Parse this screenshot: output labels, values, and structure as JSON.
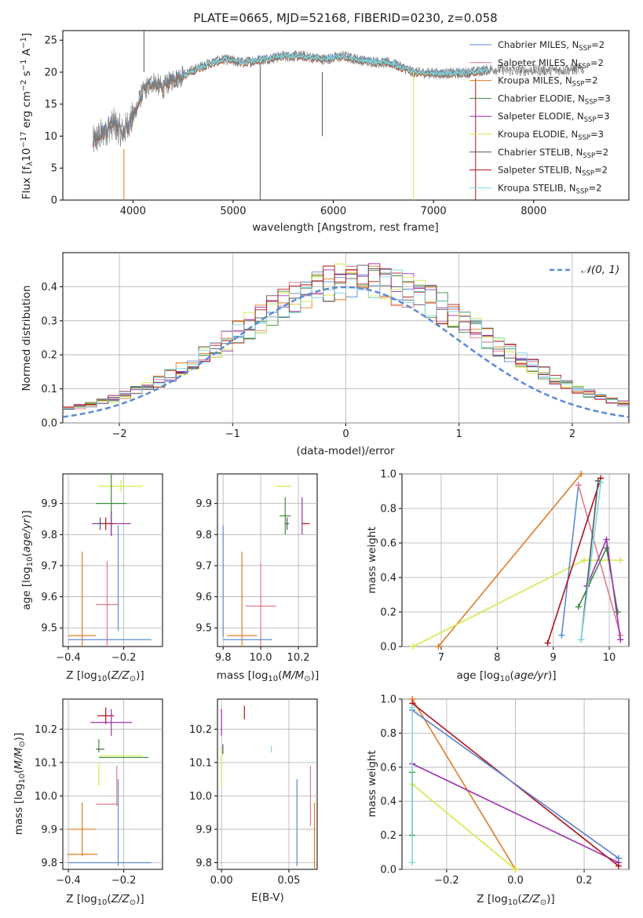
{
  "title": "PLATE=0665, MJD=52168, FIBERID=0230, z=0.058",
  "colors": {
    "Chabrier MILES": "#5b8ad6",
    "Salpeter MILES": "#e07b8c",
    "Kroupa MILES": "#e07b22",
    "Chabrier ELODIE": "#3d8c3d",
    "Salpeter ELODIE": "#9b2fae",
    "Kroupa ELODIE": "#d6e84a",
    "Chabrier STELIB": "#555555",
    "Salpeter STELIB": "#b0121c",
    "Kroupa STELIB": "#7dd8e0"
  },
  "legend": {
    "normal_label": "𝒩(0, 1)",
    "entries": [
      {
        "name": "Chabrier MILES",
        "nssp": "2"
      },
      {
        "name": "Salpeter MILES",
        "nssp": "2"
      },
      {
        "name": "Kroupa MILES",
        "nssp": "2"
      },
      {
        "name": "Chabrier ELODIE",
        "nssp": "3"
      },
      {
        "name": "Salpeter ELODIE",
        "nssp": "3"
      },
      {
        "name": "Kroupa ELODIE",
        "nssp": "3"
      },
      {
        "name": "Chabrier STELIB",
        "nssp": "2"
      },
      {
        "name": "Salpeter STELIB",
        "nssp": "2"
      },
      {
        "name": "Kroupa STELIB",
        "nssp": "2"
      }
    ]
  },
  "chart_data": [
    {
      "id": "spectrum",
      "type": "line",
      "xlabel": "wavelength [Angstrom, rest frame]",
      "ylabel": "Flux [f_λ 10^-17 erg cm^-2 s^-1 A^-1]",
      "xlim": [
        3300,
        8950
      ],
      "ylim": [
        0,
        26.5
      ],
      "xticks": [
        4000,
        5000,
        6000,
        7000,
        8000
      ],
      "yticks": [
        0,
        5,
        10,
        15,
        20,
        25
      ],
      "grid": false,
      "legend_position": "right",
      "continuum": [
        [
          3600,
          9
        ],
        [
          3700,
          10.5
        ],
        [
          3800,
          12
        ],
        [
          3900,
          10.5
        ],
        [
          4000,
          13
        ],
        [
          4100,
          17
        ],
        [
          4200,
          18.5
        ],
        [
          4300,
          17.5
        ],
        [
          4400,
          19
        ],
        [
          4500,
          19.5
        ],
        [
          4700,
          21
        ],
        [
          4900,
          22
        ],
        [
          5100,
          21.5
        ],
        [
          5300,
          22
        ],
        [
          5500,
          22.5
        ],
        [
          5700,
          22.5
        ],
        [
          5900,
          22
        ],
        [
          6100,
          22.5
        ],
        [
          6300,
          21.8
        ],
        [
          6500,
          21.5
        ],
        [
          6600,
          21.3
        ],
        [
          6800,
          20
        ],
        [
          7000,
          19.8
        ],
        [
          7200,
          19.8
        ],
        [
          7400,
          20
        ],
        [
          7600,
          20.5
        ],
        [
          7800,
          20.2
        ],
        [
          8000,
          20.3
        ],
        [
          8200,
          20.3
        ],
        [
          8400,
          20.4
        ],
        [
          8500,
          20.5
        ]
      ],
      "model_end": 7550,
      "spikes": [
        {
          "x": 3910,
          "y0": 0,
          "y1": 8,
          "series": "Kroupa MILES"
        },
        {
          "x": 4110,
          "y0": 26.5,
          "y1": 20,
          "series": "Chabrier STELIB"
        },
        {
          "x": 5270,
          "y0": 0,
          "y1": 21,
          "series": "Chabrier STELIB"
        },
        {
          "x": 5890,
          "y0": 10,
          "y1": 20,
          "series": "Chabrier STELIB"
        },
        {
          "x": 6800,
          "y0": 0,
          "y1": 20,
          "series": "Kroupa ELODIE"
        },
        {
          "x": 7420,
          "y0": 0,
          "y1": 19,
          "series": "Salpeter STELIB"
        }
      ]
    },
    {
      "id": "residuals",
      "type": "histogram",
      "xlabel": "(data-model)/error",
      "ylabel": "Normed distribution",
      "xlim": [
        -2.5,
        2.5
      ],
      "ylim": [
        0,
        0.5
      ],
      "xticks": [
        -2,
        -1,
        0,
        1,
        2
      ],
      "yticks": [
        0.0,
        0.1,
        0.2,
        0.3,
        0.4
      ],
      "grid": true,
      "legend_position": "top-right",
      "bin_width": 0.1,
      "normal": {
        "mean": 0,
        "sd": 1
      }
    },
    {
      "id": "age-Z",
      "type": "errorbar",
      "xlabel": "Z [log10(Z/Z⊙)]",
      "ylabel": "age [log10(age/yr)]",
      "xlim": [
        -0.42,
        -0.06
      ],
      "ylim": [
        9.44,
        9.995
      ],
      "xticks": [
        -0.4,
        -0.2
      ],
      "yticks": [
        9.5,
        9.6,
        9.7,
        9.8,
        9.9
      ],
      "grid": true,
      "points": [
        {
          "series": "Kroupa ELODIE",
          "x": -0.21,
          "xerr": 0.08,
          "y": 9.955,
          "yerr": 0.02
        },
        {
          "series": "Chabrier ELODIE",
          "x": -0.245,
          "xerr": 0.055,
          "y": 9.9,
          "yerr": 0.1
        },
        {
          "series": "Salpeter ELODIE",
          "x": -0.245,
          "xerr": 0.07,
          "y": 9.835,
          "yerr": 0.04
        },
        {
          "series": "Salpeter STELIB",
          "x": -0.265,
          "xerr": 0.03,
          "y": 9.835,
          "yerr": 0.02
        },
        {
          "series": "Chabrier STELIB",
          "x": -0.285,
          "xerr": 0.01,
          "y": 9.835,
          "yerr": 0.02
        },
        {
          "series": "Chabrier MILES",
          "x": -0.22,
          "xerr": 0.0,
          "y": 9.66,
          "yerr": 0.17
        },
        {
          "series": "Salpeter MILES",
          "x": -0.26,
          "xerr": 0.04,
          "y": 9.575,
          "yerr": 0.14
        },
        {
          "series": "Kroupa MILES",
          "x": -0.35,
          "xerr": 0.05,
          "y": 9.475,
          "yerr": 0.27
        },
        {
          "series": "Chabrier MILES",
          "x": -0.25,
          "xerr": 0.15,
          "y": 9.462,
          "yerr": 0.0
        }
      ]
    },
    {
      "id": "age-mass",
      "type": "errorbar",
      "xlabel": "mass [log10(M/M⊙)]",
      "ylabel": "",
      "xlim": [
        9.77,
        10.3
      ],
      "ylim": [
        9.44,
        9.995
      ],
      "xticks": [
        9.8,
        10.0,
        10.2
      ],
      "yticks": [
        9.5,
        9.6,
        9.7,
        9.8,
        9.9
      ],
      "grid": true,
      "points": [
        {
          "series": "Kroupa ELODIE",
          "x": 10.12,
          "xerr": 0.04,
          "y": 9.955,
          "yerr": 0.0
        },
        {
          "series": "Chabrier ELODIE",
          "x": 10.13,
          "xerr": 0.03,
          "y": 9.86,
          "yerr": 0.06
        },
        {
          "series": "Salpeter ELODIE",
          "x": 10.22,
          "xerr": 0.0,
          "y": 9.86,
          "yerr": 0.06
        },
        {
          "series": "Salpeter STELIB",
          "x": 10.24,
          "xerr": 0.02,
          "y": 9.835,
          "yerr": 0.0
        },
        {
          "series": "Chabrier STELIB",
          "x": 10.14,
          "xerr": 0.01,
          "y": 9.835,
          "yerr": 0.02
        },
        {
          "series": "Chabrier MILES",
          "x": 9.8,
          "xerr": 0.0,
          "y": 9.65,
          "yerr": 0.18
        },
        {
          "series": "Salpeter MILES",
          "x": 10.0,
          "xerr": 0.08,
          "y": 9.57,
          "yerr": 0.14
        },
        {
          "series": "Kroupa MILES",
          "x": 9.9,
          "xerr": 0.08,
          "y": 9.475,
          "yerr": 0.27
        },
        {
          "series": "Chabrier MILES",
          "x": 9.93,
          "xerr": 0.13,
          "y": 9.462,
          "yerr": 0.0
        }
      ]
    },
    {
      "id": "weight-age",
      "type": "line",
      "xlabel": "age [log10(age/yr)]",
      "ylabel": "mass weight",
      "xlim": [
        6.3,
        10.35
      ],
      "ylim": [
        0,
        1
      ],
      "xticks": [
        7,
        8,
        9,
        10
      ],
      "yticks": [
        0.0,
        0.2,
        0.4,
        0.6,
        0.8,
        1.0
      ],
      "grid": true,
      "series": [
        {
          "name": "Kroupa MILES",
          "points": [
            [
              6.95,
              0.0
            ],
            [
              9.5,
              1.0
            ]
          ]
        },
        {
          "name": "Kroupa ELODIE",
          "points": [
            [
              6.5,
              0.0
            ],
            [
              9.55,
              0.5
            ],
            [
              10.2,
              0.5
            ]
          ]
        },
        {
          "name": "Chabrier MILES",
          "points": [
            [
              9.15,
              0.065
            ],
            [
              9.45,
              0.935
            ]
          ]
        },
        {
          "name": "Salpeter MILES",
          "points": [
            [
              9.45,
              0.935
            ],
            [
              10.2,
              0.065
            ]
          ]
        },
        {
          "name": "Salpeter STELIB",
          "points": [
            [
              8.9,
              0.02
            ],
            [
              9.85,
              0.975
            ]
          ]
        },
        {
          "name": "Chabrier ELODIE",
          "points": [
            [
              9.45,
              0.23
            ],
            [
              9.95,
              0.57
            ],
            [
              10.15,
              0.2
            ]
          ]
        },
        {
          "name": "Salpeter ELODIE",
          "points": [
            [
              9.6,
              0.35
            ],
            [
              9.95,
              0.62
            ],
            [
              10.2,
              0.04
            ]
          ]
        },
        {
          "name": "Chabrier STELIB",
          "points": [
            [
              9.5,
              0.04
            ],
            [
              9.8,
              0.96
            ]
          ]
        },
        {
          "name": "Kroupa STELIB",
          "points": [
            [
              9.5,
              0.04
            ],
            [
              9.85,
              0.95
            ]
          ]
        }
      ]
    },
    {
      "id": "mass-Z",
      "type": "errorbar",
      "xlabel": "Z [log10(Z/Z⊙)]",
      "ylabel": "mass [log10(M/M⊙)]",
      "xlim": [
        -0.42,
        -0.06
      ],
      "ylim": [
        9.78,
        10.29
      ],
      "xticks": [
        -0.4,
        -0.2
      ],
      "yticks": [
        9.8,
        9.9,
        10.0,
        10.1,
        10.2
      ],
      "grid": true,
      "points": [
        {
          "series": "Salpeter STELIB",
          "x": -0.265,
          "xerr": 0.03,
          "y": 10.24,
          "yerr": 0.025
        },
        {
          "series": "Salpeter ELODIE",
          "x": -0.245,
          "xerr": 0.075,
          "y": 10.22,
          "yerr": 0.04
        },
        {
          "series": "Chabrier ELODIE",
          "x": -0.29,
          "xerr": 0.0,
          "y": 10.15,
          "yerr": 0.02
        },
        {
          "series": "Chabrier STELIB",
          "x": -0.285,
          "xerr": 0.015,
          "y": 10.14,
          "yerr": 0.0
        },
        {
          "series": "Kroupa ELODIE",
          "x": -0.21,
          "xerr": 0.08,
          "y": 10.12,
          "yerr": 0.0
        },
        {
          "series": "Chabrier ELODIE",
          "x": -0.2,
          "xerr": 0.09,
          "y": 10.115,
          "yerr": 0.0
        },
        {
          "series": "Kroupa ELODIE",
          "x": -0.29,
          "xerr": 0.0,
          "y": 10.065,
          "yerr": 0.035
        },
        {
          "series": "Salpeter MILES",
          "x": -0.225,
          "xerr": 0.0,
          "y": 10.03,
          "yerr": 0.06
        },
        {
          "series": "Salpeter MILES",
          "x": -0.26,
          "xerr": 0.04,
          "y": 9.975,
          "yerr": 0.0
        },
        {
          "series": "Chabrier MILES",
          "x": -0.22,
          "xerr": 0.0,
          "y": 9.92,
          "yerr": 0.13
        },
        {
          "series": "Kroupa MILES",
          "x": -0.35,
          "xerr": 0.05,
          "y": 9.9,
          "yerr": 0.08
        },
        {
          "series": "Kroupa MILES",
          "x": -0.35,
          "xerr": 0.055,
          "y": 9.825,
          "yerr": 0.0
        },
        {
          "series": "Chabrier MILES",
          "x": -0.25,
          "xerr": 0.15,
          "y": 9.8,
          "yerr": 0.0
        }
      ]
    },
    {
      "id": "mass-EBV",
      "type": "errorbar",
      "xlabel": "E(B-V)",
      "ylabel": "",
      "xlim": [
        -0.003,
        0.071
      ],
      "ylim": [
        9.78,
        10.29
      ],
      "xticks": [
        0.0,
        0.05
      ],
      "yticks": [
        9.8,
        9.9,
        10.0,
        10.1,
        10.2
      ],
      "grid": true,
      "points": [
        {
          "series": "Salpeter ELODIE",
          "x": 0.0,
          "xerr": 0.0,
          "y": 10.22,
          "yerr": 0.04
        },
        {
          "series": "Salpeter STELIB",
          "x": 0.017,
          "xerr": 0.0,
          "y": 10.25,
          "yerr": 0.02
        },
        {
          "series": "Chabrier STELIB",
          "x": 0.001,
          "xerr": 0.0,
          "y": 10.14,
          "yerr": 0.015
        },
        {
          "series": "Kroupa ELODIE",
          "x": 0.0,
          "xerr": 0.0,
          "y": 10.085,
          "yerr": 0.055
        },
        {
          "series": "Kroupa STELIB",
          "x": 0.037,
          "xerr": 0.0,
          "y": 10.14,
          "yerr": 0.01
        },
        {
          "series": "Salpeter MILES",
          "x": 0.066,
          "xerr": 0.0,
          "y": 10.0,
          "yerr": 0.09
        },
        {
          "series": "Chabrier MILES",
          "x": 0.056,
          "xerr": 0.0,
          "y": 9.92,
          "yerr": 0.13
        },
        {
          "series": "Kroupa MILES",
          "x": 0.069,
          "xerr": 0.0,
          "y": 9.88,
          "yerr": 0.1
        }
      ]
    },
    {
      "id": "weight-Z",
      "type": "line",
      "xlabel": "Z [log10(Z/Z⊙)]",
      "ylabel": "mass weight",
      "xlim": [
        -0.33,
        0.33
      ],
      "ylim": [
        0,
        1
      ],
      "xticks": [
        -0.2,
        0.0,
        0.2
      ],
      "yticks": [
        0.0,
        0.2,
        0.4,
        0.6,
        0.8,
        1.0
      ],
      "grid": true,
      "series": [
        {
          "name": "Kroupa MILES",
          "points": [
            [
              -0.3,
              1.0
            ],
            [
              0.0,
              0.0
            ]
          ]
        },
        {
          "name": "Kroupa ELODIE",
          "points": [
            [
              -0.3,
              0.5
            ],
            [
              0.0,
              0.0
            ]
          ]
        },
        {
          "name": "Salpeter ELODIE",
          "points": [
            [
              -0.3,
              0.62
            ],
            [
              0.3,
              0.04
            ]
          ]
        },
        {
          "name": "Salpeter STELIB",
          "points": [
            [
              -0.3,
              0.975
            ],
            [
              0.3,
              0.02
            ]
          ]
        },
        {
          "name": "Salpeter MILES",
          "points": [
            [
              -0.3,
              0.935
            ],
            [
              0.3,
              0.065
            ]
          ]
        },
        {
          "name": "Chabrier MILES",
          "points": [
            [
              -0.3,
              0.935
            ],
            [
              0.3,
              0.065
            ]
          ]
        },
        {
          "name": "Chabrier ELODIE",
          "points": [
            [
              -0.3,
              0.57
            ],
            [
              -0.3,
              0.2
            ]
          ]
        },
        {
          "name": "Kroupa STELIB",
          "points": [
            [
              -0.3,
              0.95
            ],
            [
              -0.3,
              0.04
            ]
          ]
        }
      ]
    }
  ]
}
